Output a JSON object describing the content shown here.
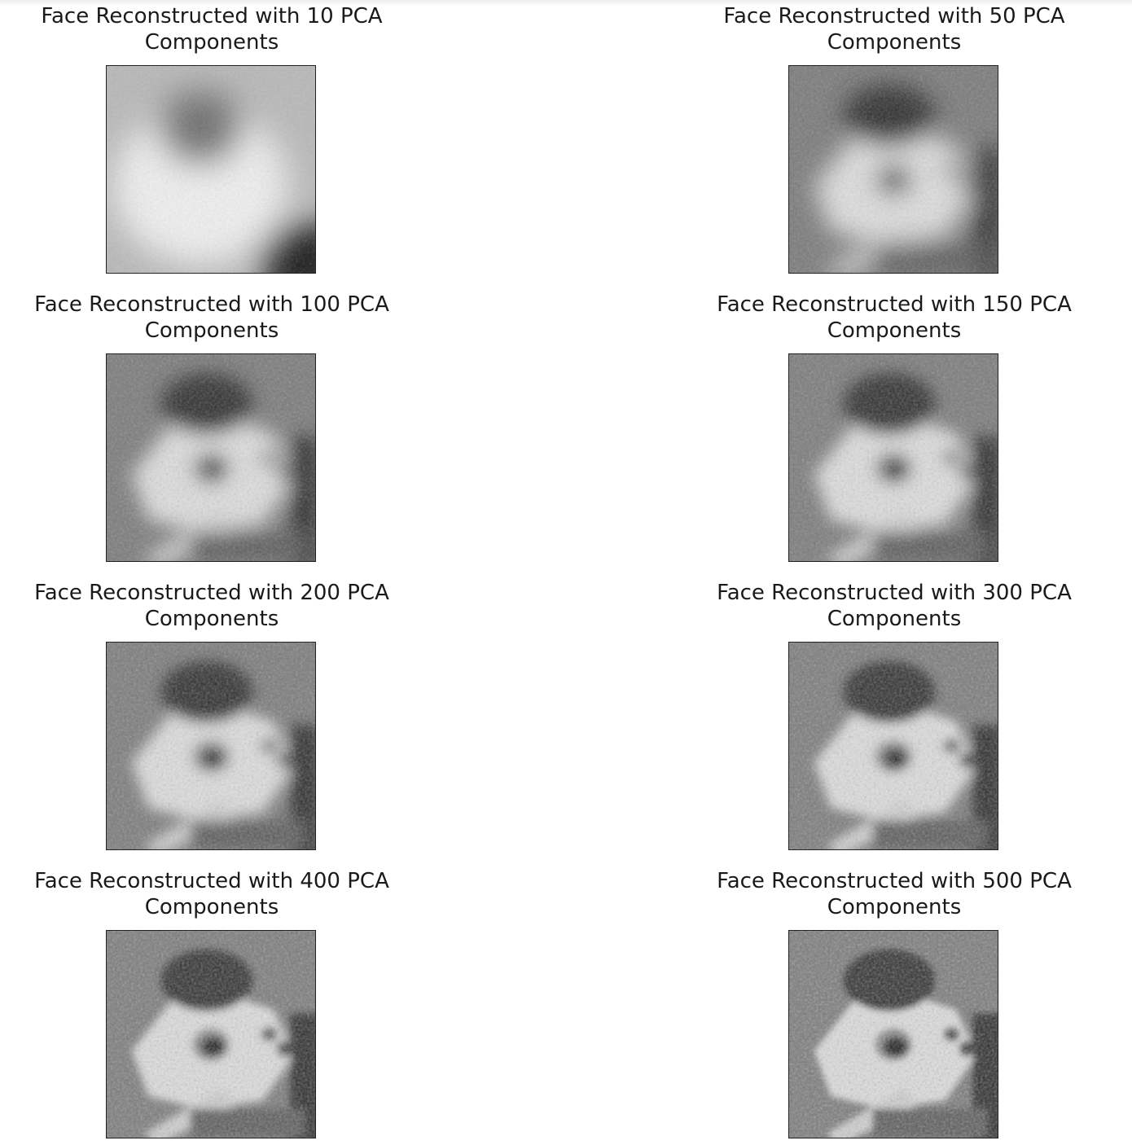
{
  "figure": {
    "panels": [
      {
        "title": "Face Reconstructed with 10 PCA\nComponents",
        "components": 10
      },
      {
        "title": "Face Reconstructed with 50 PCA\nComponents",
        "components": 50
      },
      {
        "title": "Face Reconstructed with 100 PCA\nComponents",
        "components": 100
      },
      {
        "title": "Face Reconstructed with 150 PCA\nComponents",
        "components": 150
      },
      {
        "title": "Face Reconstructed with 200 PCA\nComponents",
        "components": 200
      },
      {
        "title": "Face Reconstructed with 300 PCA\nComponents",
        "components": 300
      },
      {
        "title": "Face Reconstructed with 400 PCA\nComponents",
        "components": 400
      },
      {
        "title": "Face Reconstructed with 500 PCA\nComponents",
        "components": 500
      }
    ]
  }
}
